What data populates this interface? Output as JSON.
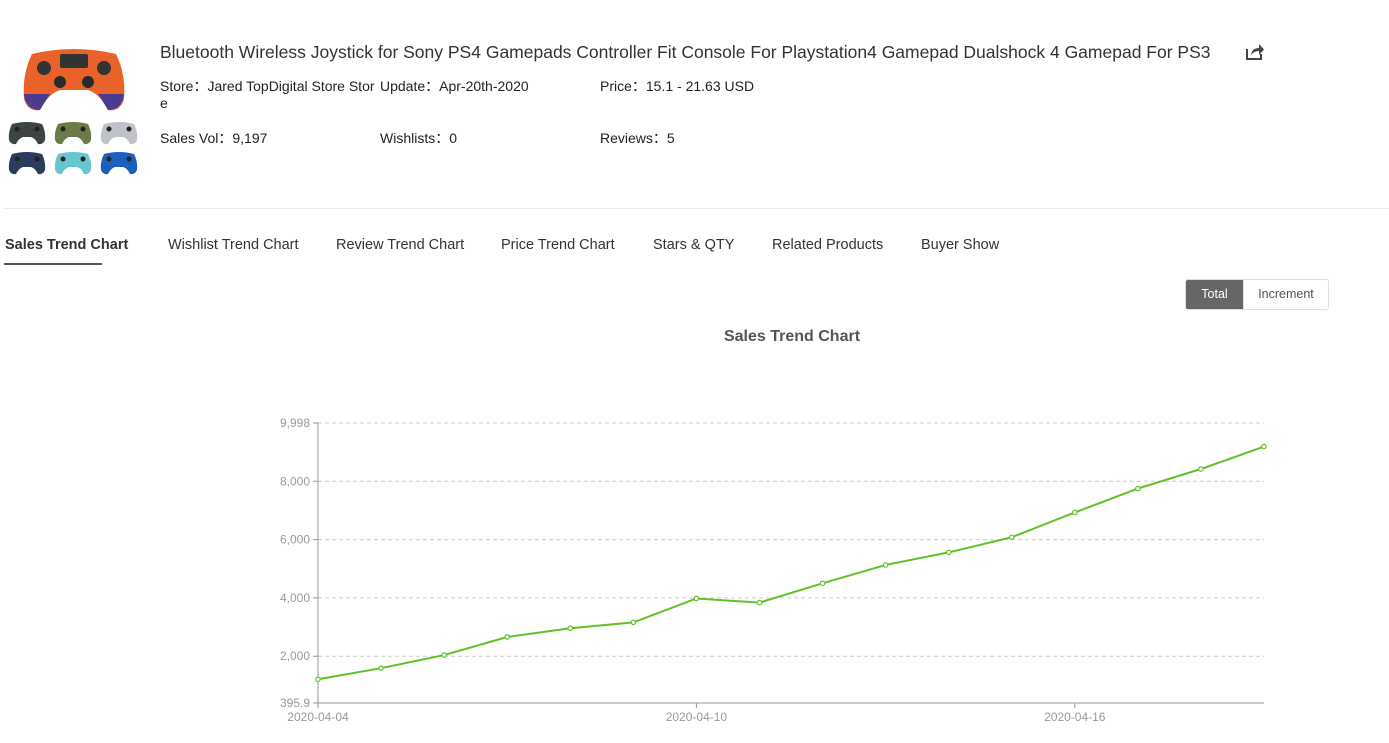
{
  "product": {
    "title": "Bluetooth Wireless Joystick for Sony PS4 Gamepads Controller Fit Console For Playstation4 Gamepad Dualshock 4 Gamepad For PS3",
    "store_line1": "Store：Jared TopDigital Store Stor",
    "store_line2": "e",
    "update": "Update：Apr-20th-2020",
    "price": "Price：15.1 - 21.63 USD",
    "sales_vol": "Sales Vol：9,197",
    "wishlists": "Wishlists：0",
    "reviews": "Reviews：5",
    "colors": {
      "main": "#e8622a",
      "main_accent": "#4a3b8f",
      "variants": [
        "#3c4540",
        "#6c7a4a",
        "#bfc3c8",
        "#2c3c5a",
        "#67c6cf",
        "#1d5fbf"
      ]
    }
  },
  "tabs": [
    {
      "label": "Sales Trend Chart",
      "active": true
    },
    {
      "label": "Wishlist Trend Chart",
      "active": false
    },
    {
      "label": "Review Trend Chart",
      "active": false
    },
    {
      "label": "Price Trend Chart",
      "active": false
    },
    {
      "label": "Stars & QTY",
      "active": false
    },
    {
      "label": "Related Products",
      "active": false
    },
    {
      "label": "Buyer Show",
      "active": false
    }
  ],
  "toggle": {
    "total": "Total",
    "increment": "Increment",
    "selected": "Total"
  },
  "chart_data": {
    "type": "line",
    "title": "Sales Trend Chart",
    "xlabel": "",
    "ylabel": "",
    "x": [
      "2020-04-04",
      "2020-04-05",
      "2020-04-06",
      "2020-04-07",
      "2020-04-08",
      "2020-04-09",
      "2020-04-10",
      "2020-04-11",
      "2020-04-12",
      "2020-04-13",
      "2020-04-14",
      "2020-04-15",
      "2020-04-16",
      "2020-04-17",
      "2020-04-18",
      "2020-04-19"
    ],
    "x_tick_labels": [
      "2020-04-04",
      "2020-04-10",
      "2020-04-16"
    ],
    "series": [
      {
        "values": [
          1210,
          1590,
          2040,
          2660,
          2960,
          3160,
          3980,
          3840,
          4500,
          5130,
          5560,
          6080,
          6930,
          7750,
          8420,
          9190
        ]
      }
    ],
    "ylim": [
      395.9,
      9998
    ],
    "y_tick_labels": [
      "395.9",
      "2,000",
      "4,000",
      "6,000",
      "8,000",
      "9,998"
    ],
    "y_ticks": [
      395.9,
      2000,
      4000,
      6000,
      8000,
      9998
    ],
    "grid": true,
    "line_color": "#5fc12a"
  }
}
